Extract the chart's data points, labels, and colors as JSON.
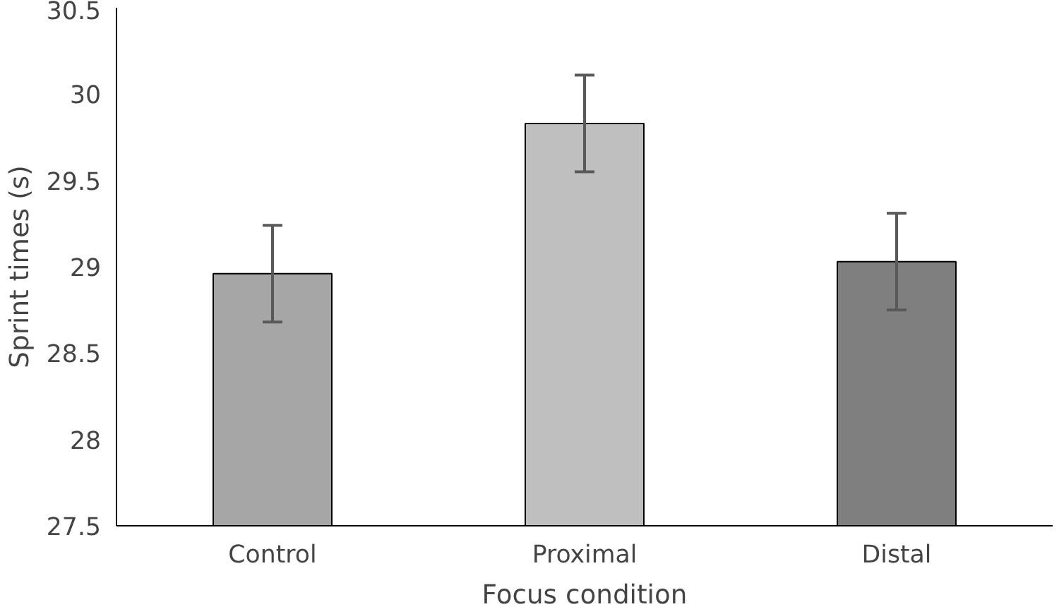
{
  "chart_data": {
    "type": "bar",
    "xlabel": "Focus condition",
    "ylabel": "Sprint times (s)",
    "categories": [
      "Control",
      "Proximal",
      "Distal"
    ],
    "values": [
      28.96,
      29.83,
      29.03
    ],
    "colors": [
      "#a6a6a6",
      "#bfbfbf",
      "#7f7f7f"
    ],
    "errors": [
      0.28,
      0.28,
      0.28
    ],
    "ylim": [
      27.5,
      30.5
    ],
    "yticks": [
      27.5,
      28,
      28.5,
      29,
      29.5,
      30,
      30.5
    ],
    "grid": false
  }
}
